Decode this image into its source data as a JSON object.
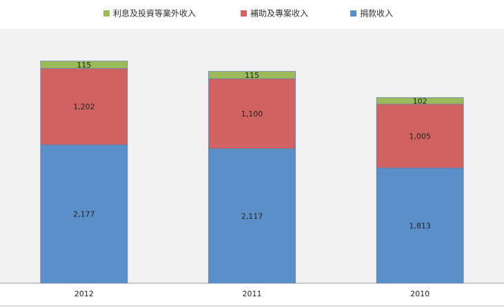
{
  "chart_data": {
    "type": "stacked-bar",
    "categories": [
      "2012",
      "2011",
      "2010"
    ],
    "series": [
      {
        "name": "捐款收入",
        "color": "#5b8fc7",
        "values": [
          2177,
          2117,
          1813
        ],
        "value_labels": [
          "2,177",
          "2,117",
          "1,813"
        ]
      },
      {
        "name": "補助及專案收入",
        "color": "#d06361",
        "values": [
          1202,
          1100,
          1005
        ],
        "value_labels": [
          "1,202",
          "1,100",
          "1,005"
        ]
      },
      {
        "name": "利息及投資等業外收入",
        "color": "#9bbb59",
        "values": [
          115,
          115,
          102
        ],
        "value_labels": [
          "115",
          "115",
          "102"
        ]
      }
    ],
    "ylim": [
      0,
      4000
    ]
  }
}
